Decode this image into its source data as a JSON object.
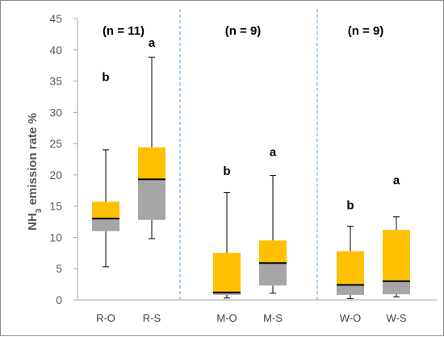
{
  "chart_data": {
    "type": "boxplot",
    "ylabel_prefix": "NH",
    "ylabel_sub": "3",
    "ylabel_suffix": " emission rate  %",
    "ylim": [
      0,
      45
    ],
    "yticks": [
      0,
      5,
      10,
      15,
      20,
      25,
      30,
      35,
      40,
      45
    ],
    "grid": false,
    "colors": {
      "upper_box": "#ffc000",
      "lower_box": "#a6a6a6",
      "median": "#000000",
      "divider": "#5b9bd5"
    },
    "groups": [
      {
        "label": "(n = 11)",
        "boxes": [
          {
            "category": "R-O",
            "min": 5.3,
            "q1": 11.0,
            "median": 13.0,
            "q3": 15.7,
            "max": 24.0,
            "letter": "b",
            "letter_y": 35.0
          },
          {
            "category": "R-S",
            "min": 9.8,
            "q1": 12.8,
            "median": 19.3,
            "q3": 24.4,
            "max": 38.8,
            "letter": "a",
            "letter_y": 40.5
          }
        ]
      },
      {
        "label": "(n = 9)",
        "boxes": [
          {
            "category": "M-O",
            "min": 0.3,
            "q1": 0.8,
            "median": 1.2,
            "q3": 7.5,
            "max": 17.2,
            "letter": "b",
            "letter_y": 20.0
          },
          {
            "category": "M-S",
            "min": 1.1,
            "q1": 2.3,
            "median": 5.9,
            "q3": 9.5,
            "max": 19.9,
            "letter": "a",
            "letter_y": 23.0
          }
        ]
      },
      {
        "label": "(n = 9)",
        "boxes": [
          {
            "category": "W-O",
            "min": 0.2,
            "q1": 0.8,
            "median": 2.4,
            "q3": 7.8,
            "max": 11.8,
            "letter": "b",
            "letter_y": 14.5
          },
          {
            "category": "W-S",
            "min": 0.5,
            "q1": 0.9,
            "median": 3.0,
            "q3": 11.2,
            "max": 13.3,
            "letter": "a",
            "letter_y": 18.5
          }
        ]
      }
    ]
  }
}
